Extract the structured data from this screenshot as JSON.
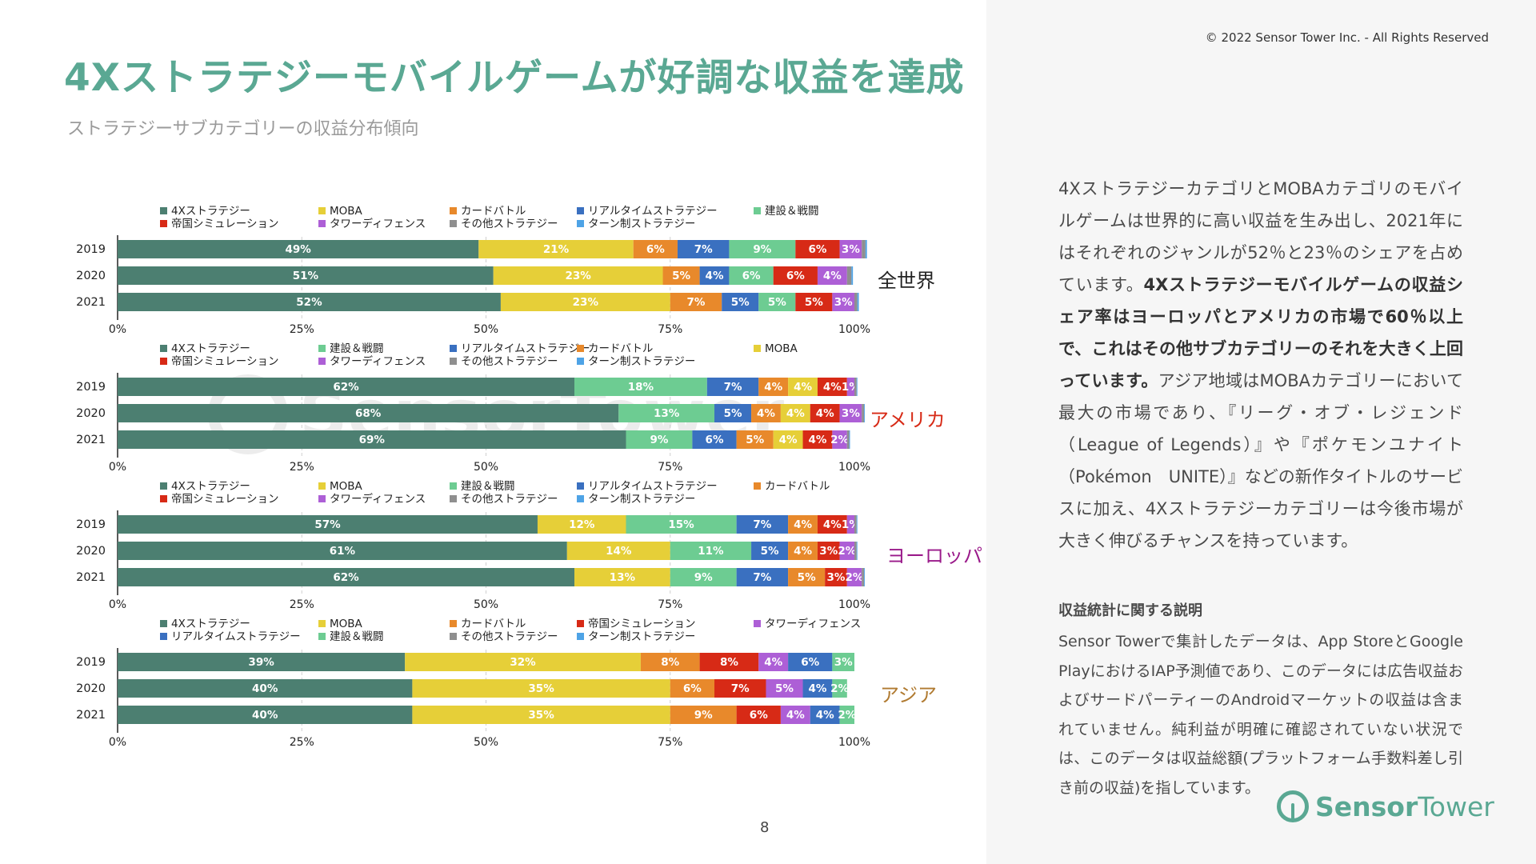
{
  "header": {
    "title": "4Xストラテジーモバイルゲームが好調な収益を達成",
    "subtitle": "ストラテジーサブカテゴリーの収益分布傾向",
    "copyright": "© 2022 Sensor Tower Inc. - All Rights Reserved"
  },
  "page_number": "8",
  "watermark": "SensorTower",
  "colors": {
    "4Xストラテジー": "#4c7f71",
    "MOBA": "#e6cf38",
    "カードバトル": "#e8892b",
    "リアルタイムストラテジー": "#3a70c0",
    "建設＆戦闘": "#6dcc92",
    "帝国シミュレーション": "#d72a16",
    "タワーディフェンス": "#ad5fd6",
    "その他ストラテジー": "#8f8f8f",
    "ターン制ストラテジー": "#4ea3e6"
  },
  "chart_data": [
    {
      "type": "bar",
      "orientation": "horizontal",
      "stacked": true,
      "region": "全世界",
      "region_color": "#222222",
      "categories": [
        "2019",
        "2020",
        "2021"
      ],
      "xlim": [
        0,
        100
      ],
      "xticks": [
        "0%",
        "25%",
        "50%",
        "75%",
        "100%"
      ],
      "legend": [
        [
          "4Xストラテジー",
          "MOBA",
          "カードバトル",
          "リアルタイムストラテジー",
          "建設＆戦闘"
        ],
        [
          "帝国シミュレーション",
          "タワーディフェンス",
          "その他ストラテジー",
          "ターン制ストラテジー"
        ]
      ],
      "series": [
        {
          "name": "4Xストラテジー",
          "values": [
            49,
            51,
            52
          ],
          "labels": [
            "49%",
            "51%",
            "52%"
          ]
        },
        {
          "name": "MOBA",
          "values": [
            21,
            23,
            23
          ],
          "labels": [
            "21%",
            "23%",
            "23%"
          ]
        },
        {
          "name": "カードバトル",
          "values": [
            6,
            5,
            7
          ],
          "labels": [
            "6%",
            "5%",
            "7%"
          ]
        },
        {
          "name": "リアルタイムストラテジー",
          "values": [
            7,
            4,
            5
          ],
          "labels": [
            "7%",
            "4%",
            "5%"
          ]
        },
        {
          "name": "建設＆戦闘",
          "values": [
            9,
            6,
            5
          ],
          "labels": [
            "9%",
            "6%",
            "5%"
          ]
        },
        {
          "name": "帝国シミュレーション",
          "values": [
            6,
            6,
            5
          ],
          "labels": [
            "6%",
            "6%",
            "5%"
          ]
        },
        {
          "name": "タワーディフェンス",
          "values": [
            3,
            4,
            3
          ],
          "labels": [
            "3%",
            "4%",
            "3%"
          ]
        },
        {
          "name": "その他ストラテジー",
          "values": [
            0.5,
            0.6,
            0.4
          ],
          "labels": [
            "",
            "",
            ""
          ]
        },
        {
          "name": "ターン制ストラテジー",
          "values": [
            0.2,
            0.2,
            0.2
          ],
          "labels": [
            "",
            "",
            ""
          ]
        }
      ]
    },
    {
      "type": "bar",
      "orientation": "horizontal",
      "stacked": true,
      "region": "アメリカ",
      "region_color": "#d72a16",
      "categories": [
        "2019",
        "2020",
        "2021"
      ],
      "xlim": [
        0,
        100
      ],
      "xticks": [
        "0%",
        "25%",
        "50%",
        "75%",
        "100%"
      ],
      "legend": [
        [
          "4Xストラテジー",
          "建設＆戦闘",
          "リアルタイムストラテジー",
          "カードバトル",
          "MOBA"
        ],
        [
          "帝国シミュレーション",
          "タワーディフェンス",
          "その他ストラテジー",
          "ターン制ストラテジー"
        ]
      ],
      "series": [
        {
          "name": "4Xストラテジー",
          "values": [
            62,
            68,
            69
          ],
          "labels": [
            "62%",
            "68%",
            "69%"
          ]
        },
        {
          "name": "建設＆戦闘",
          "values": [
            18,
            13,
            9
          ],
          "labels": [
            "18%",
            "13%",
            "9%"
          ]
        },
        {
          "name": "リアルタイムストラテジー",
          "values": [
            7,
            5,
            6
          ],
          "labels": [
            "7%",
            "5%",
            "6%"
          ]
        },
        {
          "name": "カードバトル",
          "values": [
            4,
            4,
            5
          ],
          "labels": [
            "4%",
            "4%",
            "5%"
          ]
        },
        {
          "name": "MOBA",
          "values": [
            4,
            4,
            4
          ],
          "labels": [
            "4%",
            "4%",
            "4%"
          ]
        },
        {
          "name": "帝国シミュレーション",
          "values": [
            4,
            4,
            4
          ],
          "labels": [
            "4%",
            "4%",
            "4%"
          ]
        },
        {
          "name": "タワーディフェンス",
          "values": [
            1,
            3,
            2
          ],
          "labels": [
            "1%",
            "3%",
            "2%"
          ]
        },
        {
          "name": "その他ストラテジー",
          "values": [
            0.3,
            0.3,
            0.3
          ],
          "labels": [
            "",
            "",
            ""
          ]
        },
        {
          "name": "ターン制ストラテジー",
          "values": [
            0.1,
            0.1,
            0.1
          ],
          "labels": [
            "",
            "",
            ""
          ]
        }
      ]
    },
    {
      "type": "bar",
      "orientation": "horizontal",
      "stacked": true,
      "region": "ヨーロッパ",
      "region_color": "#9a1a8a",
      "categories": [
        "2019",
        "2020",
        "2021"
      ],
      "xlim": [
        0,
        100
      ],
      "xticks": [
        "0%",
        "25%",
        "50%",
        "75%",
        "100%"
      ],
      "legend": [
        [
          "4Xストラテジー",
          "MOBA",
          "建設＆戦闘",
          "リアルタイムストラテジー",
          "カードバトル"
        ],
        [
          "帝国シミュレーション",
          "タワーディフェンス",
          "その他ストラテジー",
          "ターン制ストラテジー"
        ]
      ],
      "series": [
        {
          "name": "4Xストラテジー",
          "values": [
            57,
            61,
            62
          ],
          "labels": [
            "57%",
            "61%",
            "62%"
          ]
        },
        {
          "name": "MOBA",
          "values": [
            12,
            14,
            13
          ],
          "labels": [
            "12%",
            "14%",
            "13%"
          ]
        },
        {
          "name": "建設＆戦闘",
          "values": [
            15,
            11,
            9
          ],
          "labels": [
            "15%",
            "11%",
            "9%"
          ]
        },
        {
          "name": "リアルタイムストラテジー",
          "values": [
            7,
            5,
            7
          ],
          "labels": [
            "7%",
            "5%",
            "7%"
          ]
        },
        {
          "name": "カードバトル",
          "values": [
            4,
            4,
            5
          ],
          "labels": [
            "4%",
            "4%",
            "5%"
          ]
        },
        {
          "name": "帝国シミュレーション",
          "values": [
            4,
            3,
            3
          ],
          "labels": [
            "4%",
            "3%",
            "3%"
          ]
        },
        {
          "name": "タワーディフェンス",
          "values": [
            1,
            2,
            2
          ],
          "labels": [
            "1%",
            "2%",
            "2%"
          ]
        },
        {
          "name": "その他ストラテジー",
          "values": [
            0.3,
            0.3,
            0.3
          ],
          "labels": [
            "",
            "",
            ""
          ]
        },
        {
          "name": "ターン制ストラテジー",
          "values": [
            0.1,
            0.1,
            0.1
          ],
          "labels": [
            "",
            "",
            ""
          ]
        }
      ]
    },
    {
      "type": "bar",
      "orientation": "horizontal",
      "stacked": true,
      "region": "アジア",
      "region_color": "#b07a30",
      "categories": [
        "2019",
        "2020",
        "2021"
      ],
      "xlim": [
        0,
        100
      ],
      "xticks": [
        "0%",
        "25%",
        "50%",
        "75%",
        "100%"
      ],
      "legend": [
        [
          "4Xストラテジー",
          "MOBA",
          "カードバトル",
          "帝国シミュレーション",
          "タワーディフェンス"
        ],
        [
          "リアルタイムストラテジー",
          "建設＆戦闘",
          "その他ストラテジー",
          "ターン制ストラテジー"
        ]
      ],
      "series": [
        {
          "name": "4Xストラテジー",
          "values": [
            39,
            40,
            40
          ],
          "labels": [
            "39%",
            "40%",
            "40%"
          ]
        },
        {
          "name": "MOBA",
          "values": [
            32,
            35,
            35
          ],
          "labels": [
            "32%",
            "35%",
            "35%"
          ]
        },
        {
          "name": "カードバトル",
          "values": [
            8,
            6,
            9
          ],
          "labels": [
            "8%",
            "6%",
            "9%"
          ]
        },
        {
          "name": "帝国シミュレーション",
          "values": [
            8,
            7,
            6
          ],
          "labels": [
            "8%",
            "7%",
            "6%"
          ]
        },
        {
          "name": "タワーディフェンス",
          "values": [
            4,
            5,
            4
          ],
          "labels": [
            "4%",
            "5%",
            "4%"
          ]
        },
        {
          "name": "リアルタイムストラテジー",
          "values": [
            6,
            4,
            4
          ],
          "labels": [
            "6%",
            "4%",
            "4%"
          ]
        },
        {
          "name": "建設＆戦闘",
          "values": [
            3,
            2,
            2
          ],
          "labels": [
            "3%",
            "2%",
            "2%"
          ]
        },
        {
          "name": "その他ストラテジー",
          "values": [
            0,
            0,
            0
          ],
          "labels": [
            "",
            "",
            ""
          ]
        },
        {
          "name": "ターン制ストラテジー",
          "values": [
            0,
            0,
            0
          ],
          "labels": [
            "",
            "",
            ""
          ]
        }
      ]
    }
  ],
  "right_panel": {
    "paragraph_1": "4XストラテジーカテゴリとMOBAカテゴリのモバイルゲームは世界的に高い収益を生み出し、2021年にはそれぞれのジャンルが52％と23％のシェアを占めています。",
    "paragraph_bold": "4Xストラテジーモバイルゲームの収益シェア率はヨーロッパとアメリカの市場で60％以上で、これはその他サブカテゴリーのそれを大きく上回っています。",
    "paragraph_2": "アジア地域はMOBAカテゴリーにおいて最大の市場であり、『リーグ・オブ・レジェンド（League of Legends）』や『ポケモンユナイト（Pokémon　UNITE）』などの新作タイトルのサービスに加え、4Xストラテジーカテゴリーは今後市場が大きく伸びるチャンスを持っています。",
    "note_title": "収益統計に関する説明",
    "note_text": "Sensor Towerで集計したデータは、App StoreとGoogle PlayにおけるIAP予測値であり、このデータには広告収益およびサードパーティーのAndroidマーケットの収益は含まれていません。純利益が明確に確認されていない状況では、このデータは収益総額(プラットフォーム手数料差し引き前の収益)を指しています。",
    "logo_part1": "Sensor",
    "logo_part2": "Tower"
  }
}
